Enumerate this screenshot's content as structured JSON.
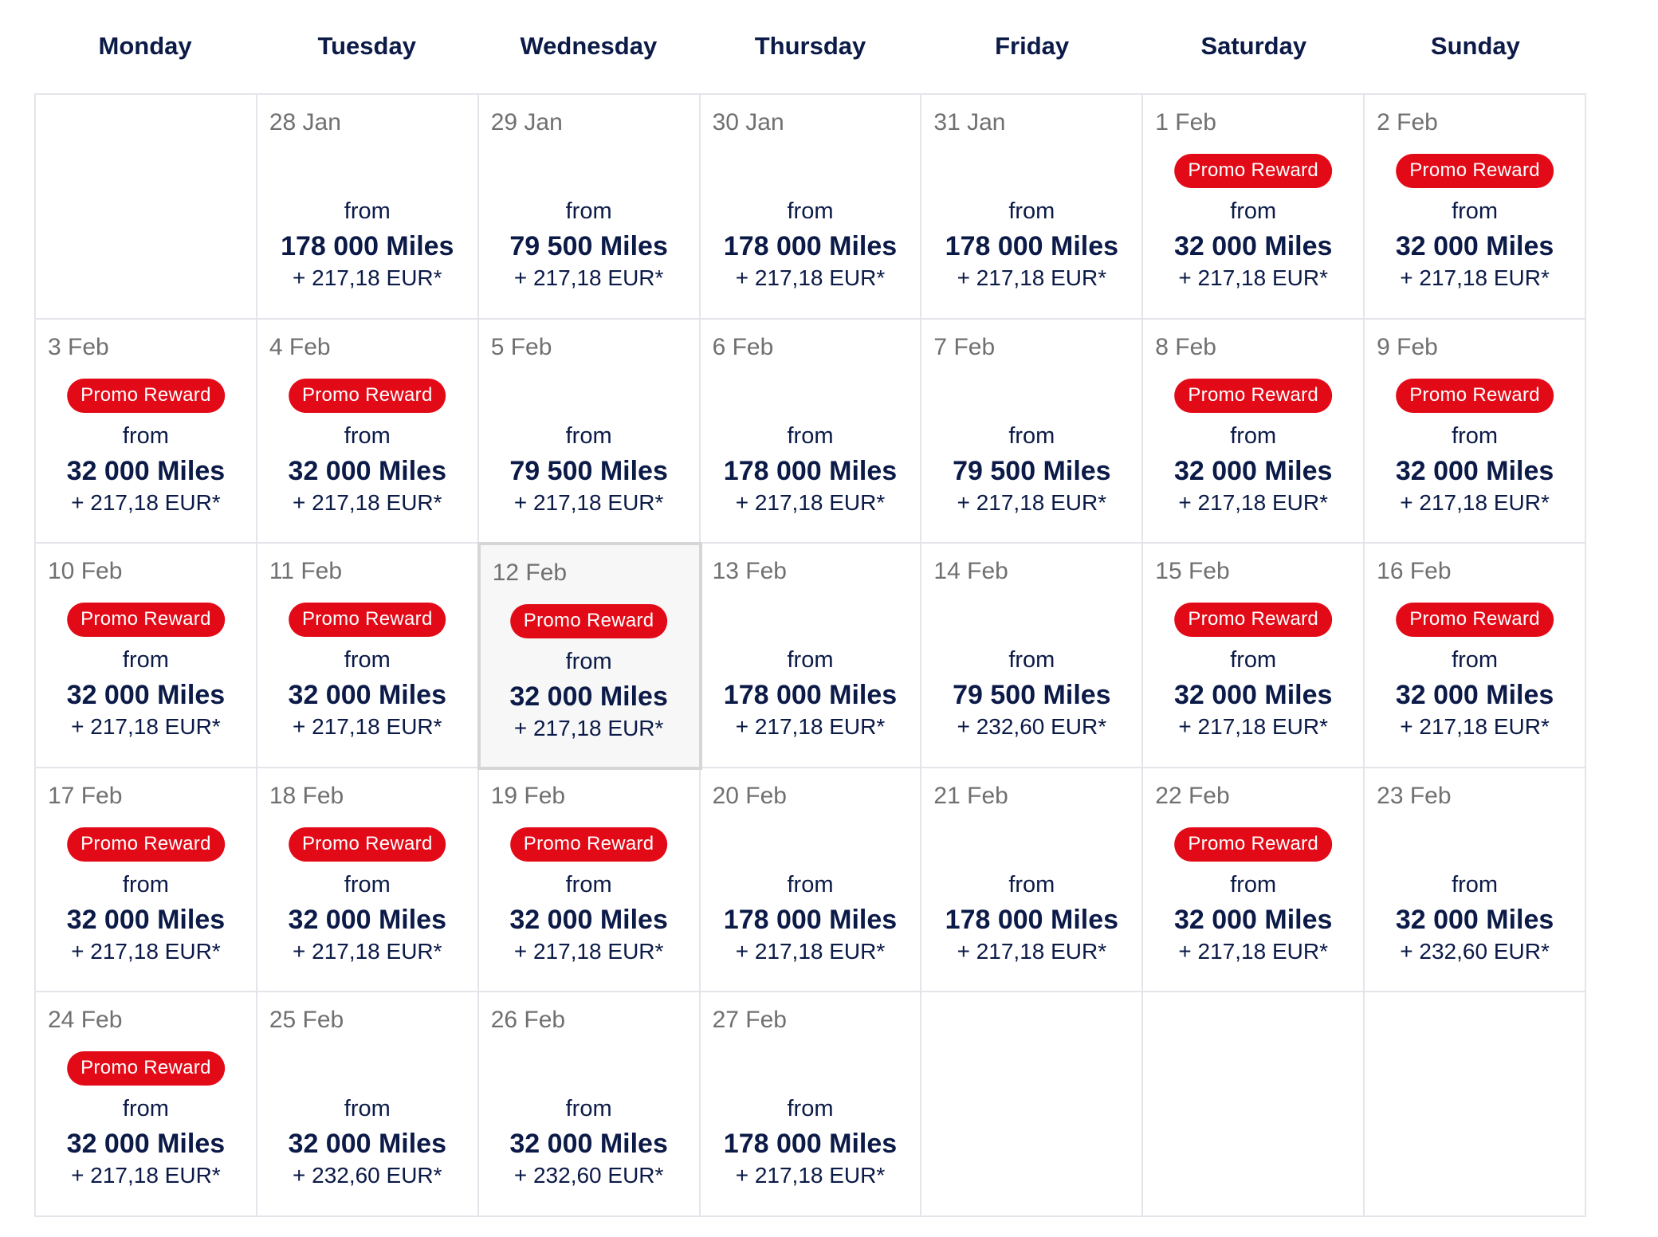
{
  "weekdays": [
    "Monday",
    "Tuesday",
    "Wednesday",
    "Thursday",
    "Friday",
    "Saturday",
    "Sunday"
  ],
  "labels": {
    "from": "from",
    "promo": "Promo Reward"
  },
  "days": [
    {
      "date": "28 Jan",
      "promo": false,
      "miles": "178 000 Miles",
      "tax": "+ 217,18 EUR*"
    },
    {
      "date": "29 Jan",
      "promo": false,
      "miles": "79 500 Miles",
      "tax": "+ 217,18 EUR*"
    },
    {
      "date": "30 Jan",
      "promo": false,
      "miles": "178 000 Miles",
      "tax": "+ 217,18 EUR*"
    },
    {
      "date": "31 Jan",
      "promo": false,
      "miles": "178 000 Miles",
      "tax": "+ 217,18 EUR*"
    },
    {
      "date": "1 Feb",
      "promo": true,
      "miles": "32 000 Miles",
      "tax": "+ 217,18 EUR*"
    },
    {
      "date": "2 Feb",
      "promo": true,
      "miles": "32 000 Miles",
      "tax": "+ 217,18 EUR*"
    },
    {
      "date": "3 Feb",
      "promo": true,
      "miles": "32 000 Miles",
      "tax": "+ 217,18 EUR*"
    },
    {
      "date": "4 Feb",
      "promo": true,
      "miles": "32 000 Miles",
      "tax": "+ 217,18 EUR*"
    },
    {
      "date": "5 Feb",
      "promo": false,
      "miles": "79 500 Miles",
      "tax": "+ 217,18 EUR*"
    },
    {
      "date": "6 Feb",
      "promo": false,
      "miles": "178 000 Miles",
      "tax": "+ 217,18 EUR*"
    },
    {
      "date": "7 Feb",
      "promo": false,
      "miles": "79 500 Miles",
      "tax": "+ 217,18 EUR*"
    },
    {
      "date": "8 Feb",
      "promo": true,
      "miles": "32 000 Miles",
      "tax": "+ 217,18 EUR*"
    },
    {
      "date": "9 Feb",
      "promo": true,
      "miles": "32 000 Miles",
      "tax": "+ 217,18 EUR*"
    },
    {
      "date": "10 Feb",
      "promo": true,
      "miles": "32 000 Miles",
      "tax": "+ 217,18 EUR*"
    },
    {
      "date": "11 Feb",
      "promo": true,
      "miles": "32 000 Miles",
      "tax": "+ 217,18 EUR*"
    },
    {
      "date": "12 Feb",
      "promo": true,
      "miles": "32 000 Miles",
      "tax": "+ 217,18 EUR*",
      "selected": true
    },
    {
      "date": "13 Feb",
      "promo": false,
      "miles": "178 000 Miles",
      "tax": "+ 217,18 EUR*"
    },
    {
      "date": "14 Feb",
      "promo": false,
      "miles": "79 500 Miles",
      "tax": "+ 232,60 EUR*"
    },
    {
      "date": "15 Feb",
      "promo": true,
      "miles": "32 000 Miles",
      "tax": "+ 217,18 EUR*"
    },
    {
      "date": "16 Feb",
      "promo": true,
      "miles": "32 000 Miles",
      "tax": "+ 217,18 EUR*"
    },
    {
      "date": "17 Feb",
      "promo": true,
      "miles": "32 000 Miles",
      "tax": "+ 217,18 EUR*"
    },
    {
      "date": "18 Feb",
      "promo": true,
      "miles": "32 000 Miles",
      "tax": "+ 217,18 EUR*"
    },
    {
      "date": "19 Feb",
      "promo": true,
      "miles": "32 000 Miles",
      "tax": "+ 217,18 EUR*"
    },
    {
      "date": "20 Feb",
      "promo": false,
      "miles": "178 000 Miles",
      "tax": "+ 217,18 EUR*"
    },
    {
      "date": "21 Feb",
      "promo": false,
      "miles": "178 000 Miles",
      "tax": "+ 217,18 EUR*"
    },
    {
      "date": "22 Feb",
      "promo": true,
      "miles": "32 000 Miles",
      "tax": "+ 217,18 EUR*"
    },
    {
      "date": "23 Feb",
      "promo": false,
      "miles": "32 000 Miles",
      "tax": "+ 232,60 EUR*"
    },
    {
      "date": "24 Feb",
      "promo": true,
      "miles": "32 000 Miles",
      "tax": "+ 217,18 EUR*"
    },
    {
      "date": "25 Feb",
      "promo": false,
      "miles": "32 000 Miles",
      "tax": "+ 232,60 EUR*"
    },
    {
      "date": "26 Feb",
      "promo": false,
      "miles": "32 000 Miles",
      "tax": "+ 232,60 EUR*"
    },
    {
      "date": "27 Feb",
      "promo": false,
      "miles": "178 000 Miles",
      "tax": "+ 217,18 EUR*"
    }
  ],
  "colors": {
    "promo_badge": "#e30a17",
    "text_primary": "#0b1a47",
    "date_text": "#707070",
    "grid_border": "#e3e5ea",
    "selected_bg": "#f6f7f6"
  }
}
